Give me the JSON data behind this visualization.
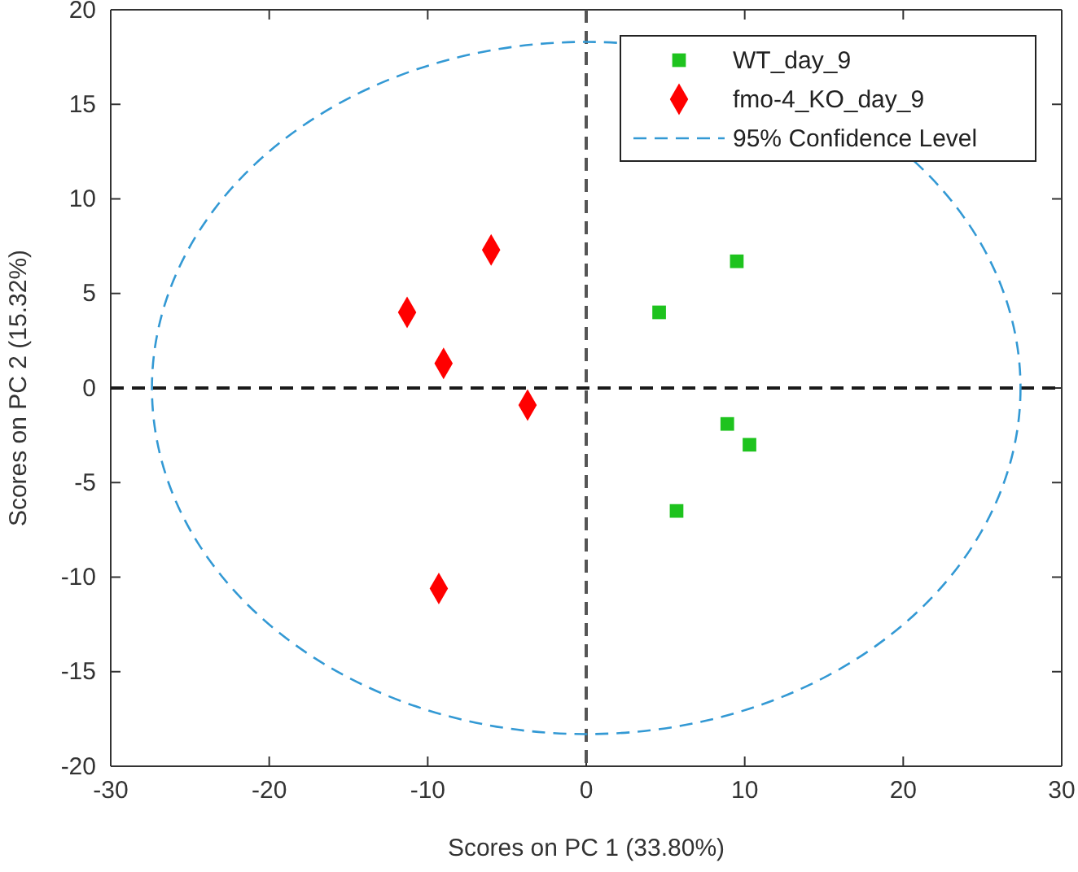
{
  "chart_data": {
    "type": "scatter",
    "xlabel": "Scores on PC 1 (33.80%)",
    "ylabel": "Scores on PC 2 (15.32%)",
    "xlim": [
      -30,
      30
    ],
    "xticks": [
      -30,
      -20,
      -10,
      0,
      10,
      20,
      30
    ],
    "ylim": [
      -20,
      20
    ],
    "yticks": [
      -20,
      -15,
      -10,
      -5,
      0,
      5,
      10,
      15,
      20
    ],
    "legend": "top right",
    "grid": false,
    "ref_lines": [
      {
        "axis": "x",
        "value": 0,
        "color": "#555555",
        "line_style": "dashed"
      },
      {
        "axis": "y",
        "value": 0,
        "color": "#1a1a1a",
        "line_style": "dashed"
      }
    ],
    "series": [
      {
        "name": "WT_day_9",
        "color": "#1ec31e",
        "marker": "square",
        "x": [
          4.6,
          9.5,
          8.9,
          10.3,
          5.7
        ],
        "values": [
          4.0,
          6.7,
          -1.9,
          -3.0,
          -6.5
        ]
      },
      {
        "name": "fmo-4_KO_day_9",
        "color": "#ff0000",
        "marker": "diamond",
        "x": [
          -6.0,
          -11.3,
          -9.0,
          -3.7,
          -9.3
        ],
        "values": [
          7.3,
          4.0,
          1.3,
          -0.9,
          -10.6
        ]
      }
    ],
    "annotations": [
      "95% Confidence Level"
    ]
  }
}
